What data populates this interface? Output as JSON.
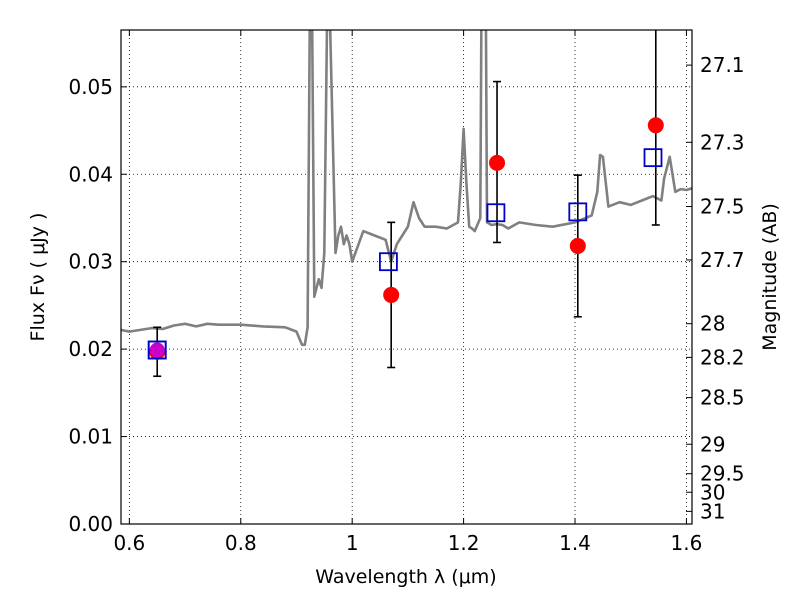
{
  "chart_data": {
    "type": "scatter",
    "xlabel": "Wavelength  λ (μm)",
    "ylabel": "Flux  Fν  ( μJy )",
    "y2label": "Magnitude (AB)",
    "xlim": [
      0.585,
      1.61
    ],
    "ylim": [
      0.0,
      0.0565
    ],
    "grid": true,
    "xticks": [
      {
        "v": 0.6,
        "t": "0.6"
      },
      {
        "v": 0.8,
        "t": "0.8"
      },
      {
        "v": 1.0,
        "t": "1"
      },
      {
        "v": 1.2,
        "t": "1.2"
      },
      {
        "v": 1.4,
        "t": "1.4"
      },
      {
        "v": 1.6,
        "t": "1.6"
      }
    ],
    "yticks": [
      {
        "v": 0.0,
        "t": "0.00"
      },
      {
        "v": 0.01,
        "t": "0.01"
      },
      {
        "v": 0.02,
        "t": "0.02"
      },
      {
        "v": 0.03,
        "t": "0.03"
      },
      {
        "v": 0.04,
        "t": "0.04"
      },
      {
        "v": 0.05,
        "t": "0.05"
      }
    ],
    "y2ticks": [
      {
        "mag": 27.1,
        "t": "27.1"
      },
      {
        "mag": 27.3,
        "t": "27.3"
      },
      {
        "mag": 27.5,
        "t": "27.5"
      },
      {
        "mag": 27.7,
        "t": "27.7"
      },
      {
        "mag": 28.0,
        "t": "28"
      },
      {
        "mag": 28.2,
        "t": "28.2"
      },
      {
        "mag": 28.5,
        "t": "28.5"
      },
      {
        "mag": 29.0,
        "t": "29"
      },
      {
        "mag": 29.5,
        "t": "29.5"
      },
      {
        "mag": 30.0,
        "t": "30"
      },
      {
        "mag": 31.0,
        "t": "31"
      }
    ],
    "series": [
      {
        "name": "model spectrum",
        "kind": "line",
        "color": "#808080",
        "x": [
          0.585,
          0.6,
          0.62,
          0.64,
          0.66,
          0.68,
          0.7,
          0.72,
          0.74,
          0.76,
          0.8,
          0.84,
          0.88,
          0.9,
          0.91,
          0.915,
          0.92,
          0.924,
          0.928,
          0.932,
          0.936,
          0.94,
          0.945,
          0.95,
          0.955,
          0.96,
          0.97,
          0.975,
          0.98,
          0.985,
          0.99,
          0.995,
          1.0,
          1.02,
          1.04,
          1.06,
          1.07,
          1.08,
          1.09,
          1.1,
          1.11,
          1.12,
          1.13,
          1.15,
          1.17,
          1.19,
          1.195,
          1.2,
          1.205,
          1.21,
          1.215,
          1.22,
          1.23,
          1.232,
          1.234,
          1.24,
          1.242,
          1.25,
          1.26,
          1.27,
          1.28,
          1.3,
          1.33,
          1.36,
          1.4,
          1.43,
          1.44,
          1.445,
          1.45,
          1.46,
          1.48,
          1.5,
          1.52,
          1.54,
          1.555,
          1.56,
          1.57,
          1.58,
          1.59,
          1.6,
          1.61
        ],
        "y": [
          0.0222,
          0.022,
          0.0222,
          0.0224,
          0.0223,
          0.0227,
          0.0229,
          0.0226,
          0.0229,
          0.0228,
          0.0228,
          0.0226,
          0.0225,
          0.022,
          0.0205,
          0.0205,
          0.0225,
          0.058,
          0.058,
          0.026,
          0.027,
          0.028,
          0.027,
          0.031,
          0.058,
          0.058,
          0.031,
          0.033,
          0.034,
          0.032,
          0.033,
          0.032,
          0.03,
          0.0335,
          0.033,
          0.0325,
          0.03,
          0.032,
          0.033,
          0.034,
          0.0368,
          0.035,
          0.034,
          0.034,
          0.0338,
          0.0345,
          0.039,
          0.0452,
          0.039,
          0.034,
          0.0338,
          0.0335,
          0.035,
          0.058,
          0.058,
          0.058,
          0.0345,
          0.0342,
          0.0343,
          0.0342,
          0.0338,
          0.0345,
          0.0342,
          0.034,
          0.0345,
          0.0353,
          0.038,
          0.0422,
          0.042,
          0.0363,
          0.0368,
          0.0365,
          0.037,
          0.0375,
          0.037,
          0.0395,
          0.042,
          0.038,
          0.0383,
          0.0382,
          0.0384
        ]
      },
      {
        "name": "observed photometry",
        "kind": "points",
        "color": "#ff0000",
        "x": [
          0.65,
          1.07,
          1.26,
          1.405,
          1.545
        ],
        "y": [
          0.0197,
          0.0262,
          0.0413,
          0.0318,
          0.0456
        ],
        "yerr_low": [
          0.0028,
          0.0083,
          0.0091,
          0.0081,
          0.0114
        ],
        "yerr_high": [
          0.0028,
          0.0083,
          0.0093,
          0.0081,
          0.0114
        ]
      },
      {
        "name": "model photometry",
        "kind": "squares",
        "color": "#0000cc",
        "x": [
          0.65,
          1.065,
          1.258,
          1.405,
          1.54
        ],
        "y": [
          0.0199,
          0.03,
          0.0356,
          0.0357,
          0.0419
        ]
      }
    ],
    "extra_marker": {
      "name": "magenta point",
      "color": "#cc00cc",
      "x": 0.65,
      "y": 0.0199
    }
  }
}
